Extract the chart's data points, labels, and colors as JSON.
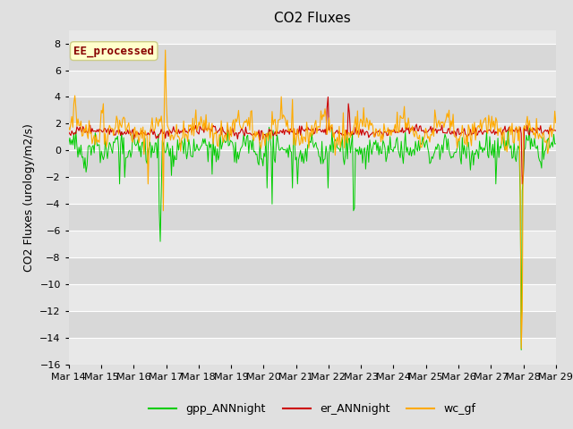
{
  "title": "CO2 Fluxes",
  "ylabel": "CO2 Fluxes (urology/m2/s)",
  "ylim": [
    -16,
    9
  ],
  "yticks": [
    -16,
    -14,
    -12,
    -10,
    -8,
    -6,
    -4,
    -2,
    0,
    2,
    4,
    6,
    8
  ],
  "xlabels": [
    "Mar 14",
    "Mar 15",
    "Mar 16",
    "Mar 17",
    "Mar 18",
    "Mar 19",
    "Mar 20",
    "Mar 21",
    "Mar 22",
    "Mar 23",
    "Mar 24",
    "Mar 25",
    "Mar 26",
    "Mar 27",
    "Mar 28",
    "Mar 29"
  ],
  "n_points": 480,
  "color_gpp": "#00cc00",
  "color_er": "#cc0000",
  "color_wc": "#ffaa00",
  "fig_bg": "#e0e0e0",
  "plot_bg": "#e8e8e8",
  "annotation_text": "EE_processed",
  "annotation_color": "#880000",
  "annotation_bg": "#ffffcc",
  "annotation_edge": "#cccc88",
  "legend_labels": [
    "gpp_ANNnight",
    "er_ANNnight",
    "wc_gf"
  ],
  "title_fontsize": 11,
  "label_fontsize": 9,
  "tick_fontsize": 8,
  "annot_fontsize": 9
}
